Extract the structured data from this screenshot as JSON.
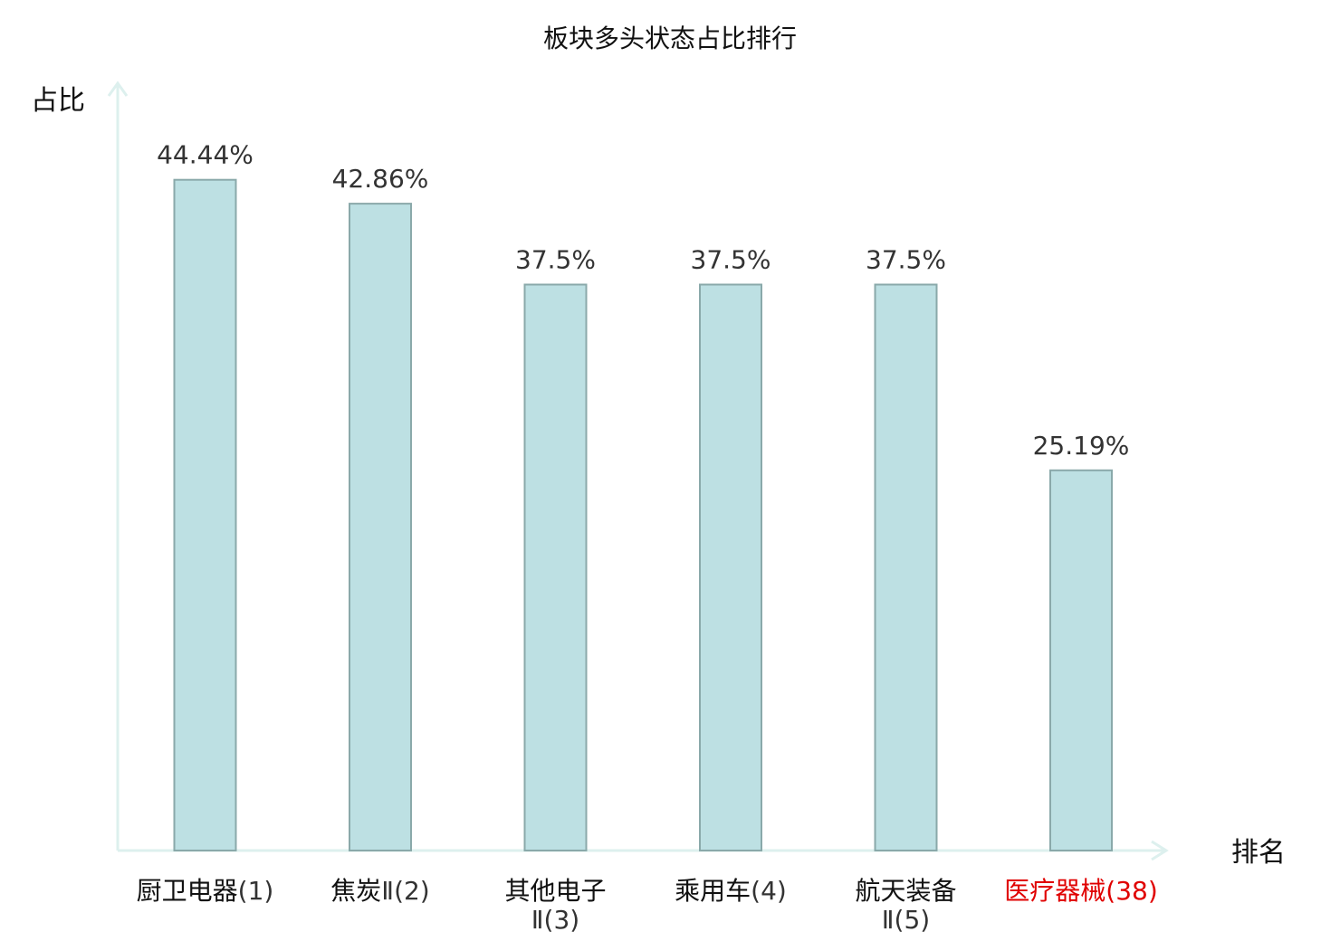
{
  "chart_data": {
    "type": "bar",
    "title": "板块多头状态占比排行",
    "ylabel": "占比",
    "xlabel": "排名",
    "ylim": [
      0,
      50
    ],
    "grid": false,
    "categories": [
      {
        "line1": "厨卫电器",
        "line1_rank": "(1)",
        "line2": "",
        "highlight": false
      },
      {
        "line1": "焦炭",
        "line1_rank": "Ⅱ(2)",
        "line2": "",
        "highlight": false
      },
      {
        "line1": "其他电子",
        "line1_rank": "",
        "line2": "Ⅱ(3)",
        "highlight": false
      },
      {
        "line1": "乘用车",
        "line1_rank": "(4)",
        "line2": "",
        "highlight": false
      },
      {
        "line1": "航天装备",
        "line1_rank": "",
        "line2": "Ⅱ(5)",
        "highlight": false
      },
      {
        "line1": "医疗器械",
        "line1_rank": "(38)",
        "line2": "",
        "highlight": true
      }
    ],
    "values": [
      44.44,
      42.86,
      37.5,
      37.5,
      37.5,
      25.19
    ],
    "value_labels": [
      "44.44%",
      "42.86%",
      "37.5%",
      "37.5%",
      "37.5%",
      "25.19%"
    ],
    "colors": {
      "bar_fill": "#bde0e3",
      "bar_stroke": "#8aa9aa",
      "axis": "#ddf0ee",
      "highlight": "#e00000"
    }
  }
}
